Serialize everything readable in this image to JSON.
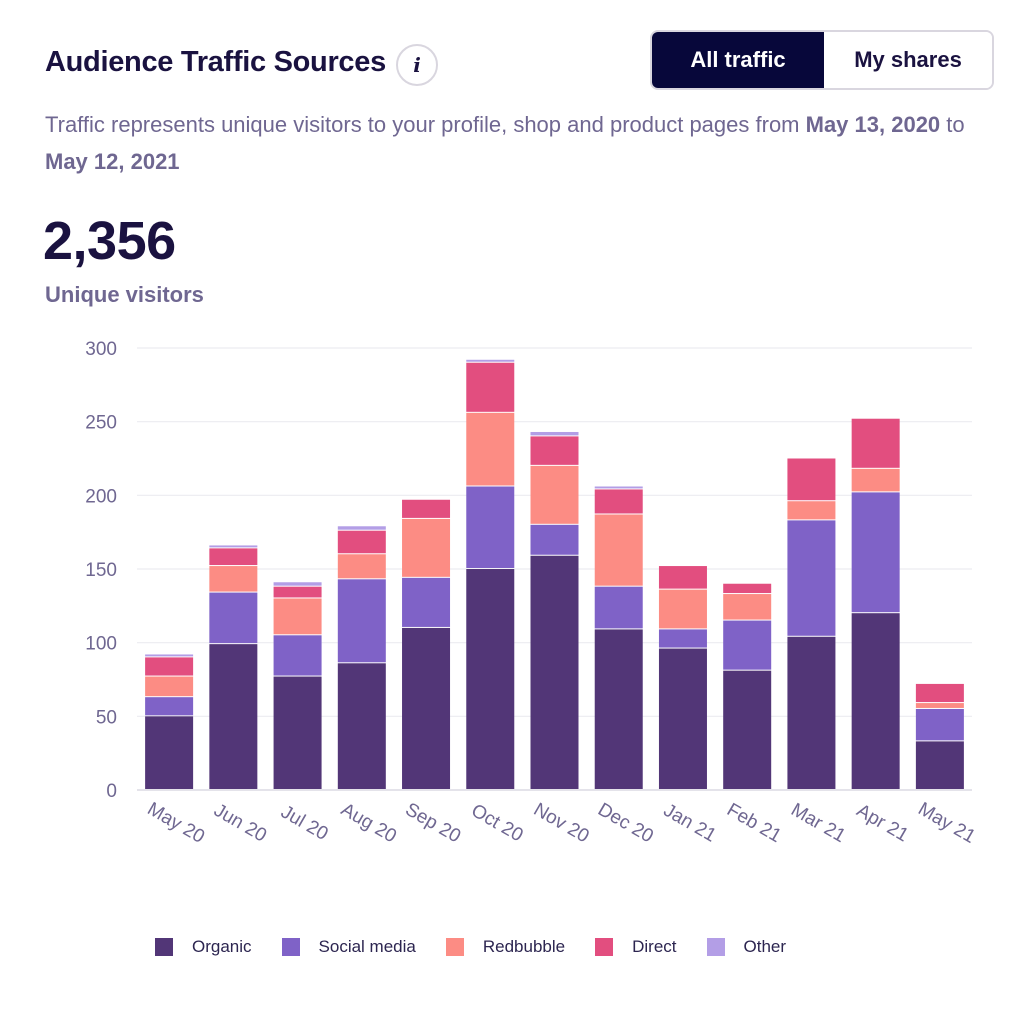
{
  "header": {
    "title": "Audience Traffic Sources",
    "info_label": "i"
  },
  "toggle": {
    "options": [
      "All traffic",
      "My shares"
    ],
    "active": "All traffic"
  },
  "subtitle": {
    "text_before": "Traffic represents unique visitors to your profile, shop and product pages from ",
    "start_date": "May 13, 2020",
    "connector": " to ",
    "end_date": "May 12, 2021"
  },
  "summary": {
    "total": "2,356",
    "label": "Unique visitors"
  },
  "colors": {
    "Organic": "#523677",
    "Social media": "#7f62c7",
    "Redbubble": "#fc8c84",
    "Direct": "#e24e7f",
    "Other": "#b39ee6",
    "axis_text": "#6f6791",
    "grid": "#ececf1"
  },
  "chart_data": {
    "type": "bar",
    "stacked": true,
    "categories": [
      "May 20",
      "Jun 20",
      "Jul 20",
      "Aug 20",
      "Sep 20",
      "Oct 20",
      "Nov 20",
      "Dec 20",
      "Jan 21",
      "Feb 21",
      "Mar 21",
      "Apr 21",
      "May 21"
    ],
    "series": [
      {
        "name": "Organic",
        "values": [
          50,
          99,
          77,
          86,
          110,
          150,
          159,
          109,
          96,
          81,
          104,
          120,
          33
        ]
      },
      {
        "name": "Social media",
        "values": [
          13,
          35,
          28,
          57,
          34,
          56,
          21,
          29,
          13,
          34,
          79,
          82,
          22
        ]
      },
      {
        "name": "Redbubble",
        "values": [
          14,
          18,
          25,
          17,
          40,
          50,
          40,
          49,
          27,
          18,
          13,
          16,
          4
        ]
      },
      {
        "name": "Direct",
        "values": [
          13,
          12,
          8,
          16,
          13,
          34,
          20,
          17,
          16,
          7,
          29,
          34,
          13
        ]
      },
      {
        "name": "Other",
        "values": [
          2,
          2,
          3,
          3,
          0,
          2,
          3,
          2,
          0,
          0,
          0,
          0,
          0
        ]
      }
    ],
    "yticks": [
      0,
      50,
      100,
      150,
      200,
      250,
      300
    ],
    "ylim": [
      0,
      300
    ],
    "title": "",
    "xlabel": "",
    "ylabel": "",
    "legend": "bottom",
    "grid": true
  }
}
